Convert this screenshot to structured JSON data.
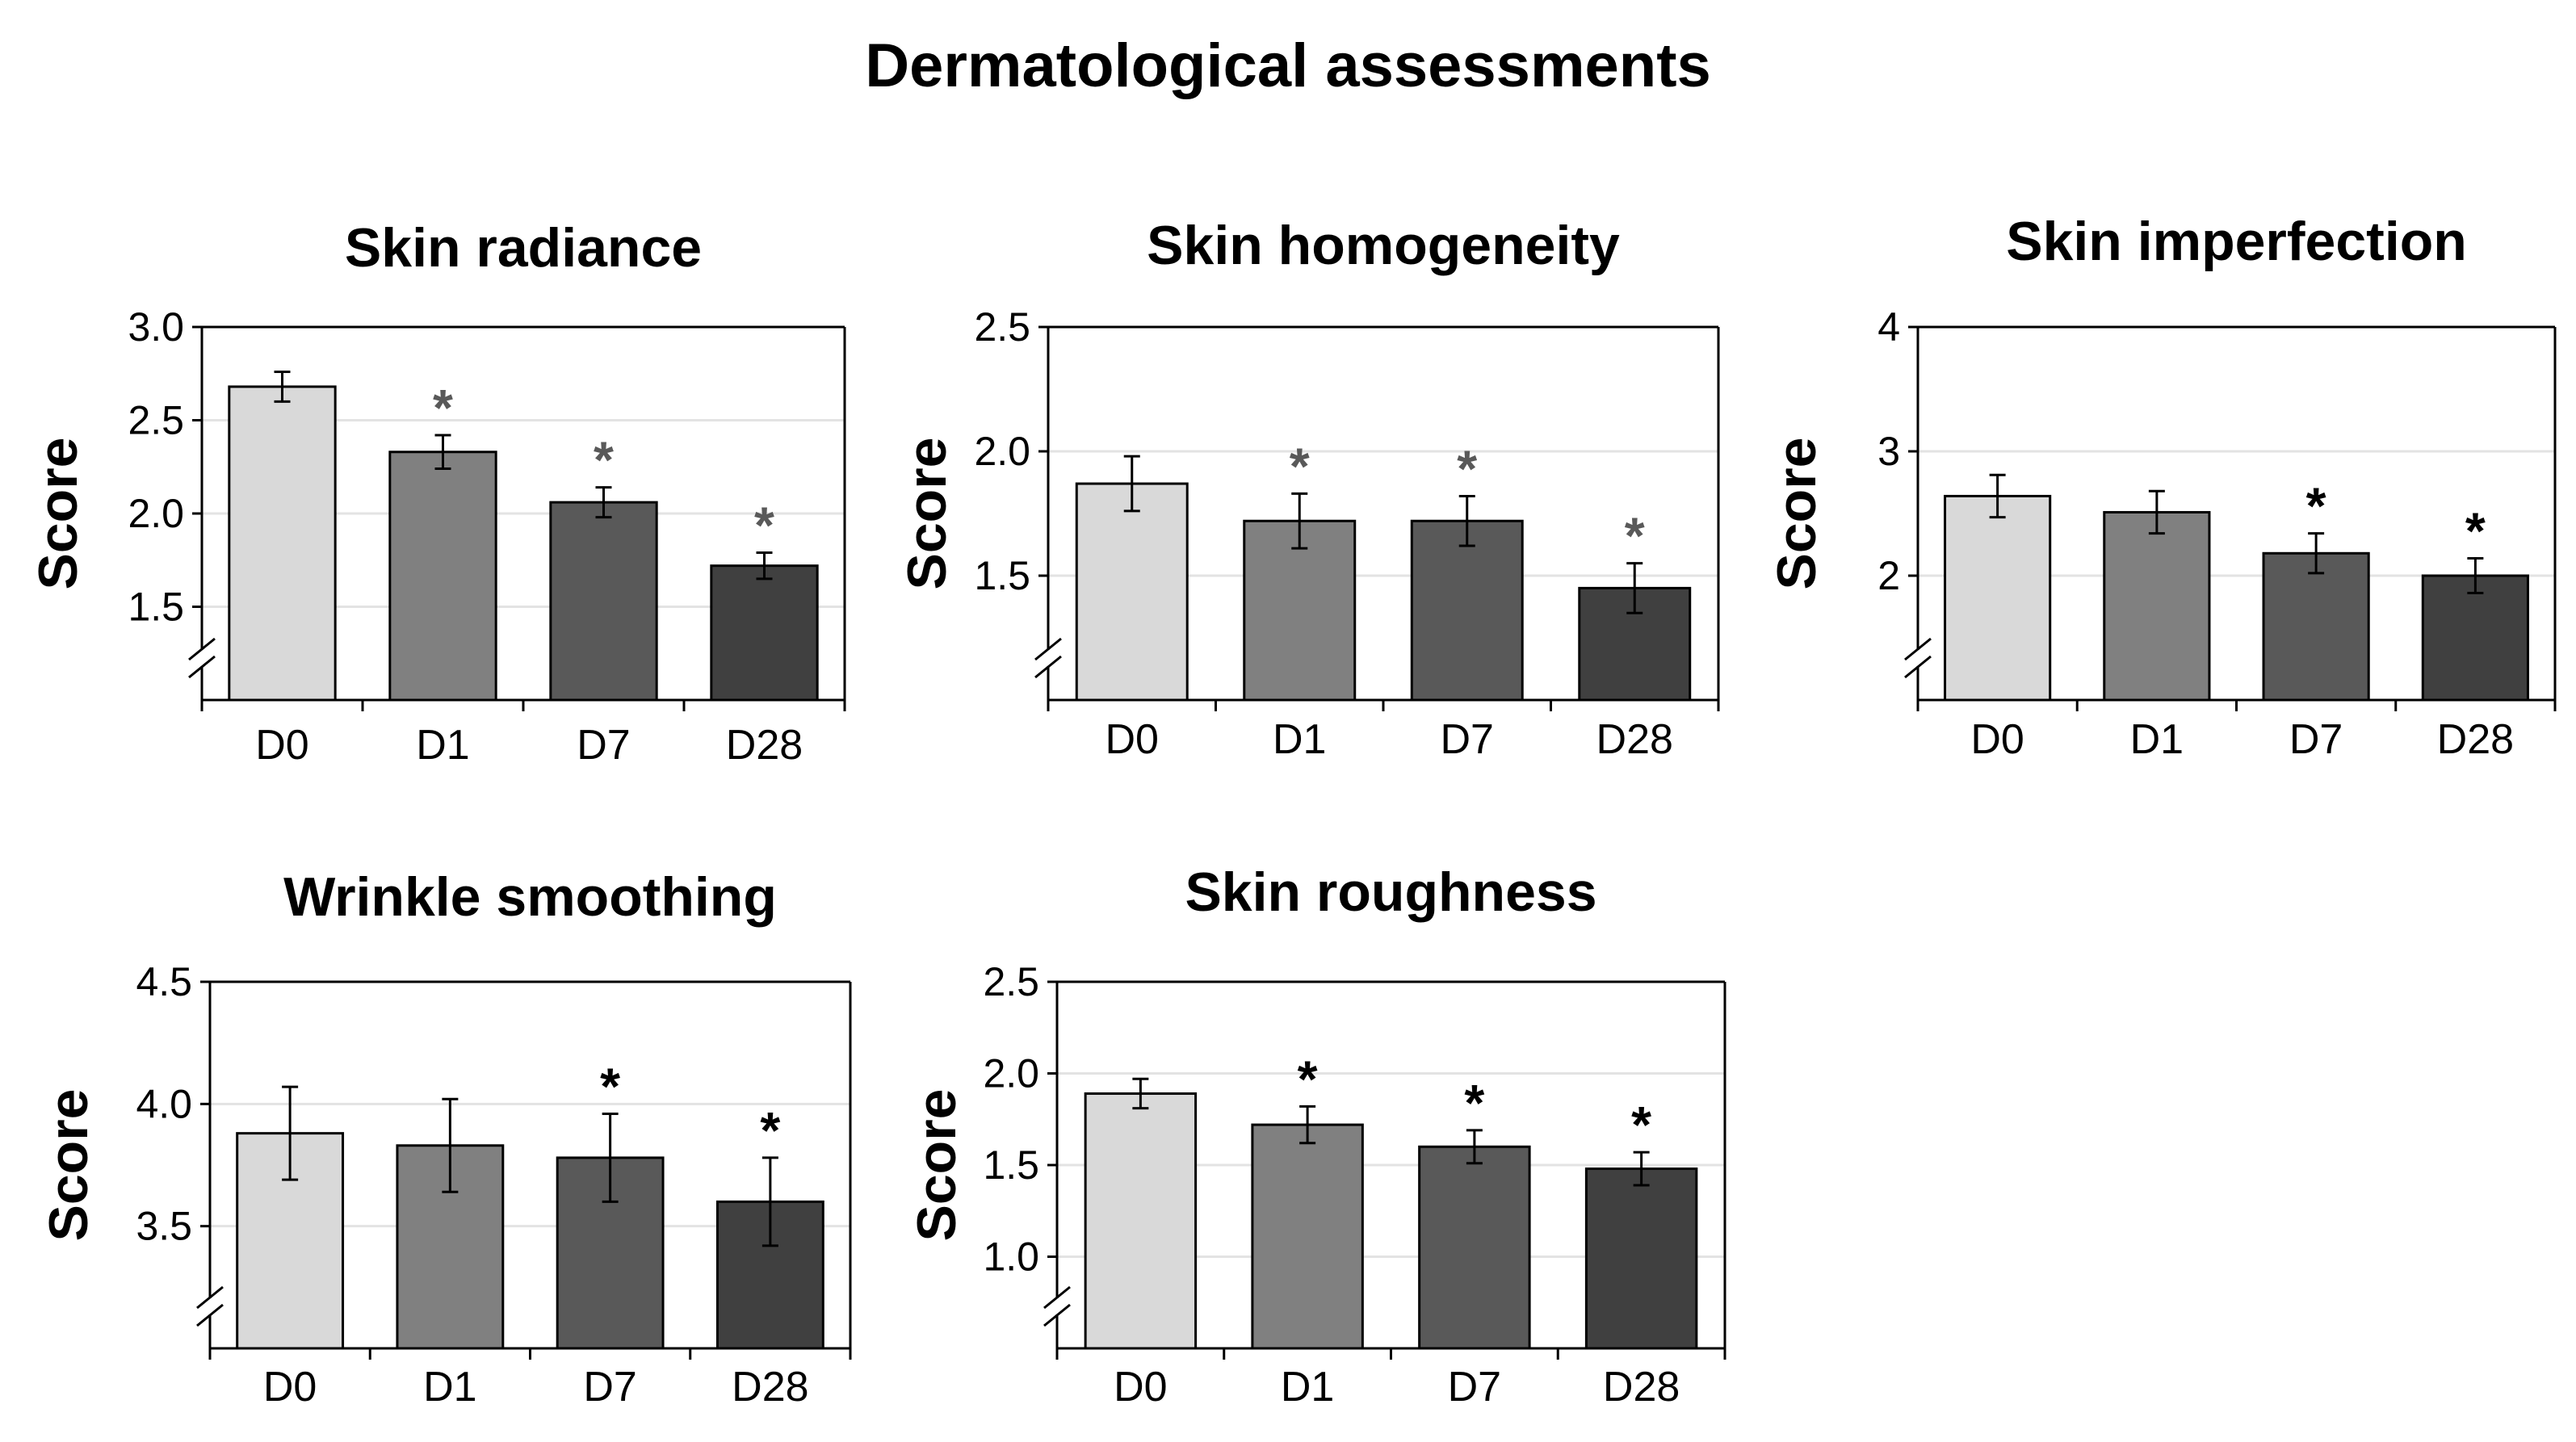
{
  "title": "Dermatological assessments",
  "colors": {
    "D0": "#d9d9d9",
    "D1": "#808080",
    "D7": "#595959",
    "D28": "#404040",
    "axis": "#000000",
    "grid": "#e3e3e3",
    "asterisk_dark": "#000000",
    "asterisk_grey": "#595959"
  },
  "chart_data": [
    {
      "type": "bar",
      "title": "Skin radiance",
      "ylabel": "Score",
      "xlabel": "",
      "categories": [
        "D0",
        "D1",
        "D7",
        "D28"
      ],
      "values": [
        2.68,
        2.33,
        2.06,
        1.72
      ],
      "errors": [
        0.08,
        0.09,
        0.08,
        0.07
      ],
      "significant": [
        false,
        true,
        true,
        true
      ],
      "significance_marker": "*",
      "ylim": [
        1.0,
        3.0
      ],
      "axis_break": true,
      "yticks": [
        1.5,
        2.0,
        2.5,
        3.0
      ],
      "ytick_labels": [
        "1.5",
        "2.0",
        "2.5",
        "3.0"
      ],
      "grid": true
    },
    {
      "type": "bar",
      "title": "Skin homogeneity",
      "ylabel": "Score",
      "xlabel": "",
      "categories": [
        "D0",
        "D1",
        "D7",
        "D28"
      ],
      "values": [
        1.87,
        1.72,
        1.72,
        1.45
      ],
      "errors": [
        0.11,
        0.11,
        0.1,
        0.1
      ],
      "significant": [
        false,
        true,
        true,
        true
      ],
      "significance_marker": "*",
      "ylim": [
        1.0,
        2.5
      ],
      "axis_break": true,
      "yticks": [
        1.5,
        2.0,
        2.5
      ],
      "ytick_labels": [
        "1.5",
        "2.0",
        "2.5"
      ],
      "grid": true
    },
    {
      "type": "bar",
      "title": "Skin imperfection",
      "ylabel": "Score",
      "xlabel": "",
      "categories": [
        "D0",
        "D1",
        "D7",
        "D28"
      ],
      "values": [
        2.64,
        2.51,
        2.18,
        2.0
      ],
      "errors": [
        0.17,
        0.17,
        0.16,
        0.14
      ],
      "significant": [
        false,
        false,
        true,
        true
      ],
      "significance_marker": "*",
      "ylim": [
        1.0,
        4.0
      ],
      "axis_break": true,
      "yticks": [
        2,
        3,
        4
      ],
      "ytick_labels": [
        "2",
        "3",
        "4"
      ],
      "grid": true
    },
    {
      "type": "bar",
      "title": "Wrinkle smoothing",
      "ylabel": "Score",
      "xlabel": "",
      "categories": [
        "D0",
        "D1",
        "D7",
        "D28"
      ],
      "values": [
        3.88,
        3.83,
        3.78,
        3.6
      ],
      "errors": [
        0.19,
        0.19,
        0.18,
        0.18
      ],
      "significant": [
        false,
        false,
        true,
        true
      ],
      "significance_marker": "*",
      "ylim": [
        3.0,
        4.5
      ],
      "axis_break": true,
      "yticks": [
        3.5,
        4.0,
        4.5
      ],
      "ytick_labels": [
        "3.5",
        "4.0",
        "4.5"
      ],
      "grid": true
    },
    {
      "type": "bar",
      "title": "Skin roughness",
      "ylabel": "Score",
      "xlabel": "",
      "categories": [
        "D0",
        "D1",
        "D7",
        "D28"
      ],
      "values": [
        1.89,
        1.72,
        1.6,
        1.48
      ],
      "errors": [
        0.08,
        0.1,
        0.09,
        0.09
      ],
      "significant": [
        false,
        true,
        true,
        true
      ],
      "significance_marker": "*",
      "ylim": [
        0.5,
        2.5
      ],
      "axis_break": true,
      "yticks": [
        1.0,
        1.5,
        2.0,
        2.5
      ],
      "ytick_labels": [
        "1.0",
        "1.5",
        "2.0",
        "2.5"
      ],
      "grid": true
    }
  ]
}
